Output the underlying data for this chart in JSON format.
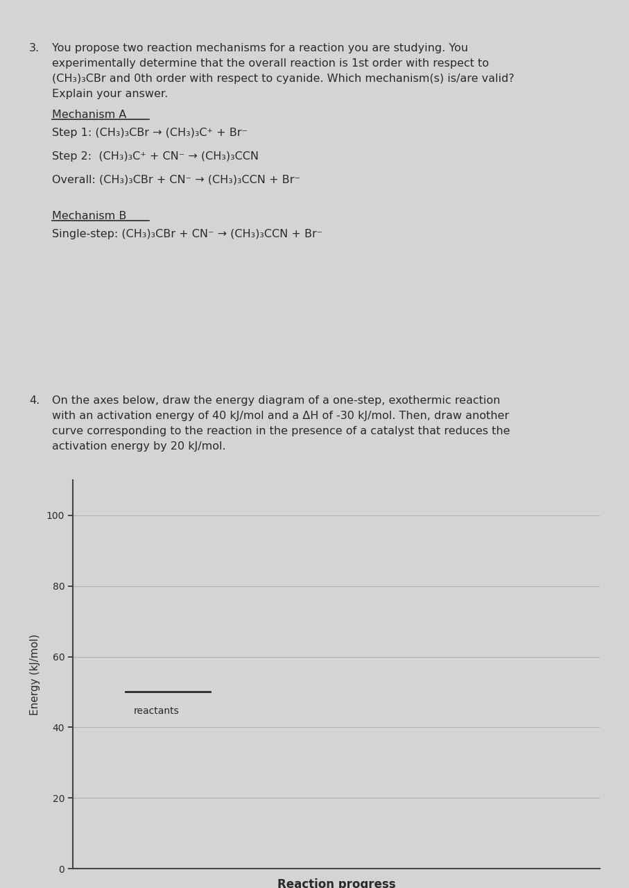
{
  "bg_color": "#d4d4d4",
  "text_color": "#2a2a2a",
  "q3_number": "3.",
  "q3_text_line1": "You propose two reaction mechanisms for a reaction you are studying. You",
  "q3_text_line2": "experimentally determine that the overall reaction is 1st order with respect to",
  "q3_text_line3": "(CH₃)₃CBr and 0th order with respect to cyanide. Which mechanism(s) is/are valid?",
  "q3_text_line4": "Explain your answer.",
  "mech_a_label": "Mechanism A",
  "step1_text": "Step 1: (CH₃)₃CBr → (CH₃)₃C⁺ + Br⁻",
  "step2_text": "Step 2:  (CH₃)₃C⁺ + CN⁻ → (CH₃)₃CCN",
  "overall_text": "Overall: (CH₃)₃CBr + CN⁻ → (CH₃)₃CCN + Br⁻",
  "mech_b_label": "Mechanism B",
  "single_step_text": "Single-step: (CH₃)₃CBr + CN⁻ → (CH₃)₃CCN + Br⁻",
  "q4_number": "4.",
  "q4_text_line1": "On the axes below, draw the energy diagram of a one-step, exothermic reaction",
  "q4_text_line2": "with an activation energy of 40 kJ/mol and a ΔH of -30 kJ/mol. Then, draw another",
  "q4_text_line3": "curve corresponding to the reaction in the presence of a catalyst that reduces the",
  "q4_text_line4": "activation energy by 20 kJ/mol.",
  "axis_yticks": [
    0,
    20,
    40,
    60,
    80,
    100
  ],
  "ylabel": "Energy (kJ/mol)",
  "xlabel": "Reaction progress",
  "reactants_label": "reactants",
  "reactants_energy": 50,
  "ymax": 110,
  "grid_color": "#b0b0b0",
  "spine_color": "#444444"
}
